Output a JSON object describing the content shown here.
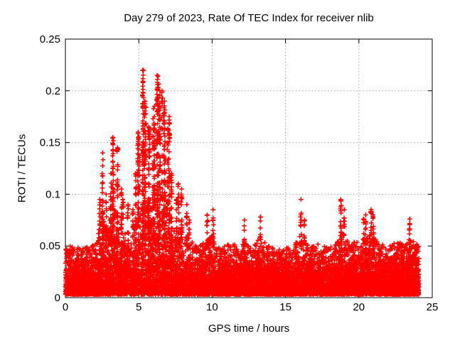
{
  "page": {
    "background": "#ffffff"
  },
  "chart_data": {
    "type": "scatter",
    "title": "Day 279 of 2023, Rate Of TEC Index for receiver nlib",
    "xlabel": "GPS time / hours",
    "ylabel": "ROTI / TECUs",
    "series_name": "ROTI",
    "xlim": [
      0,
      25
    ],
    "ylim": [
      0,
      0.25
    ],
    "xticks": [
      0,
      5,
      10,
      15,
      20,
      25
    ],
    "xtick_labels": [
      "0",
      "5",
      "10",
      "15",
      "20",
      "25"
    ],
    "yticks": [
      0,
      0.05,
      0.1,
      0.15,
      0.2,
      0.25
    ],
    "ytick_labels": [
      "0",
      "0.05",
      "0.1",
      "0.15",
      "0.2",
      "0.25"
    ],
    "grid": {
      "style": "dashed",
      "color": "#a0a0a0"
    },
    "marker": {
      "shape": "plus",
      "color": "#ff0000",
      "size": 7
    },
    "time_coverage_hours": [
      0,
      24.1
    ],
    "dense_band": {
      "description": "bulk of samples lies in a near-solid band below this level",
      "base_top": 0.028
    },
    "envelope": {
      "description": "maximum ROTI observed per 0.25 h bin, read from plot",
      "hours_start": 0,
      "hours_step": 0.25,
      "max_roti": [
        0.05,
        0.055,
        0.065,
        0.055,
        0.048,
        0.05,
        0.055,
        0.058,
        0.065,
        0.095,
        0.14,
        0.1,
        0.12,
        0.155,
        0.145,
        0.105,
        0.095,
        0.09,
        0.085,
        0.12,
        0.16,
        0.22,
        0.19,
        0.165,
        0.185,
        0.215,
        0.2,
        0.19,
        0.175,
        0.12,
        0.095,
        0.11,
        0.105,
        0.09,
        0.075,
        0.06,
        0.055,
        0.06,
        0.07,
        0.08,
        0.085,
        0.062,
        0.05,
        0.055,
        0.065,
        0.07,
        0.06,
        0.055,
        0.052,
        0.075,
        0.058,
        0.06,
        0.065,
        0.078,
        0.07,
        0.06,
        0.055,
        0.048,
        0.045,
        0.052,
        0.06,
        0.055,
        0.052,
        0.07,
        0.095,
        0.075,
        0.06,
        0.055,
        0.06,
        0.065,
        0.06,
        0.055,
        0.052,
        0.058,
        0.068,
        0.095,
        0.085,
        0.07,
        0.062,
        0.068,
        0.072,
        0.076,
        0.08,
        0.085,
        0.08,
        0.072,
        0.066,
        0.06,
        0.056,
        0.06,
        0.066,
        0.066,
        0.06,
        0.07,
        0.076,
        0.07,
        0.06
      ]
    },
    "render": {
      "seed": 279279,
      "base_points": 8200,
      "fringe_points": 2300,
      "spike_threshold": 0.075,
      "spike_density": 300
    }
  }
}
